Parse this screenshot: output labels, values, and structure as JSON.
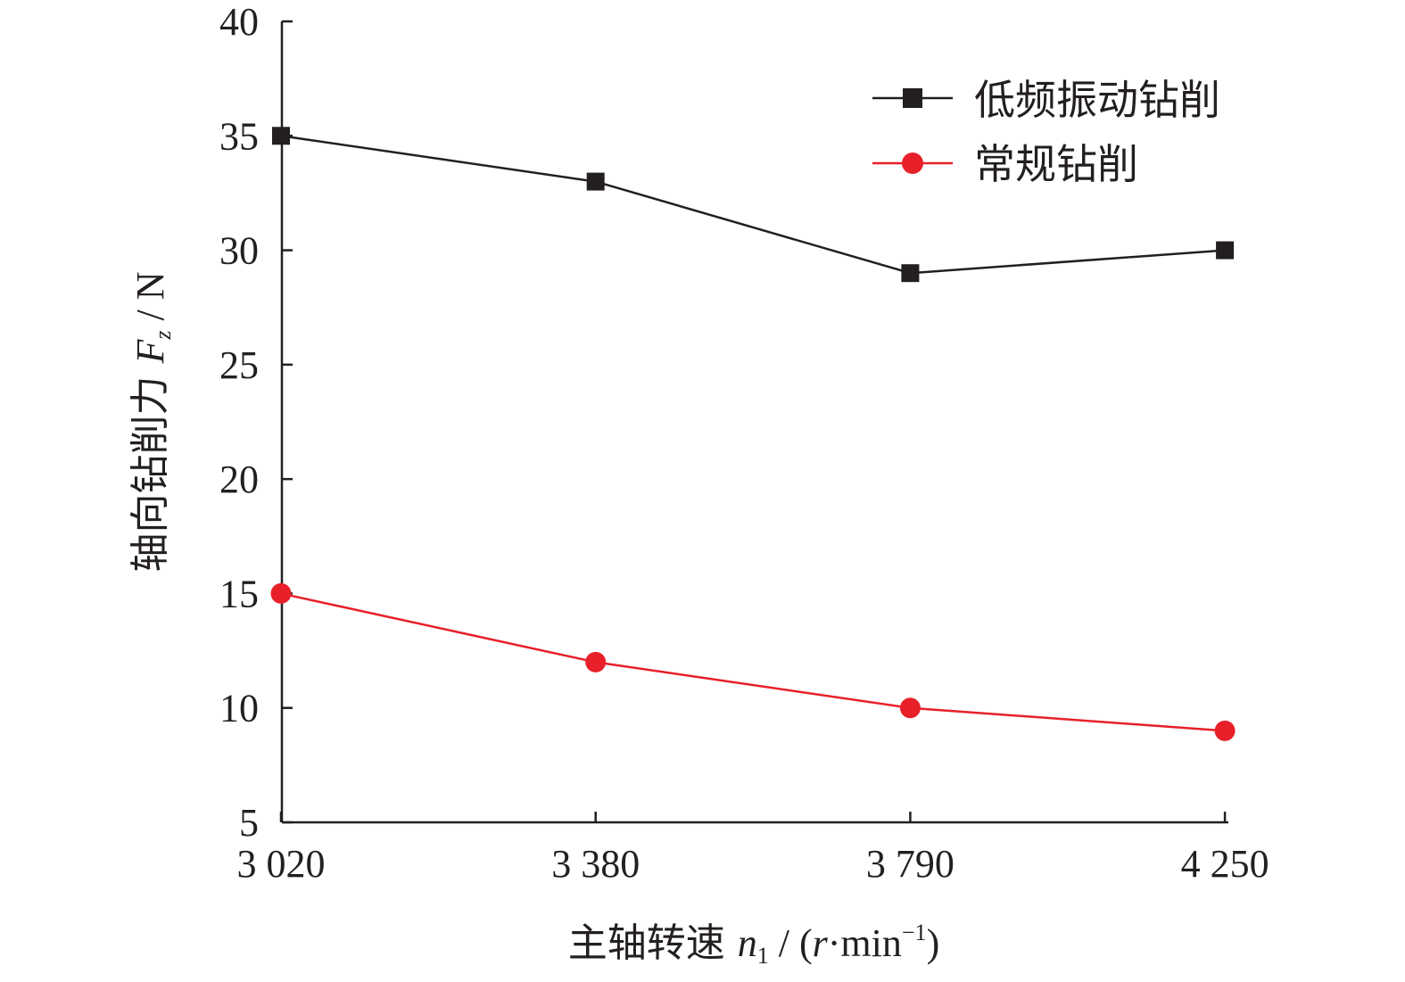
{
  "chart_data": {
    "type": "line",
    "categories": [
      "3 020",
      "3 380",
      "3 790",
      "4 250"
    ],
    "series": [
      {
        "name": "低频振动钻削",
        "values": [
          35,
          33,
          29,
          30
        ],
        "color": "#231f20",
        "marker": "square"
      },
      {
        "name": "常规钻削",
        "values": [
          15,
          12,
          10,
          9
        ],
        "color": "#e8202a",
        "marker": "circle"
      }
    ],
    "xlabel": {
      "prefix": "主轴转速 ",
      "symbol": "n",
      "subscript": "1",
      "unit_open": " / (",
      "unit_r": "r",
      "unit_mid": "·min",
      "unit_sup": "−1",
      "unit_close": ")"
    },
    "ylabel": {
      "prefix": "轴向钻削力 ",
      "symbol": "F",
      "subscript": "z",
      "suffix": " / N"
    },
    "yticks": [
      5,
      10,
      15,
      20,
      25,
      30,
      35,
      40
    ],
    "ylim": [
      5,
      40
    ],
    "grid": false,
    "legend_position": "top-right"
  }
}
